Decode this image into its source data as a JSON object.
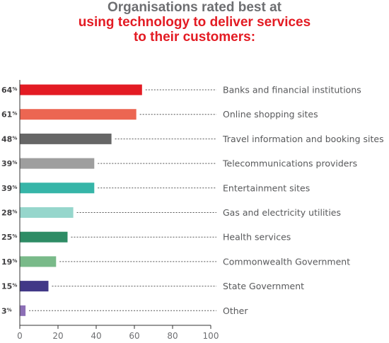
{
  "title": {
    "line1": "Organisations rated best at",
    "line2": "using technology to deliver services",
    "line3": "to their customers:"
  },
  "chart_data": {
    "type": "bar",
    "orientation": "horizontal",
    "categories": [
      "Banks and financial institutions",
      "Online shopping sites",
      "Travel information and booking sites",
      "Telecommunications providers",
      "Entertainment sites",
      "Gas and electricity utilities",
      "Health services",
      "Commonwealth Government",
      "State Government",
      "Other"
    ],
    "values": [
      64,
      61,
      48,
      39,
      39,
      28,
      25,
      19,
      15,
      3
    ],
    "value_unit": "%",
    "colors": [
      "#e31b23",
      "#ec6652",
      "#666666",
      "#9e9e9e",
      "#36b5a8",
      "#96d6cc",
      "#2e8c65",
      "#79ba89",
      "#413887",
      "#8c6fb6"
    ],
    "xlim": [
      0,
      100
    ],
    "xticks": [
      0,
      20,
      40,
      60,
      80,
      100
    ],
    "grid": false,
    "legend": "none"
  }
}
